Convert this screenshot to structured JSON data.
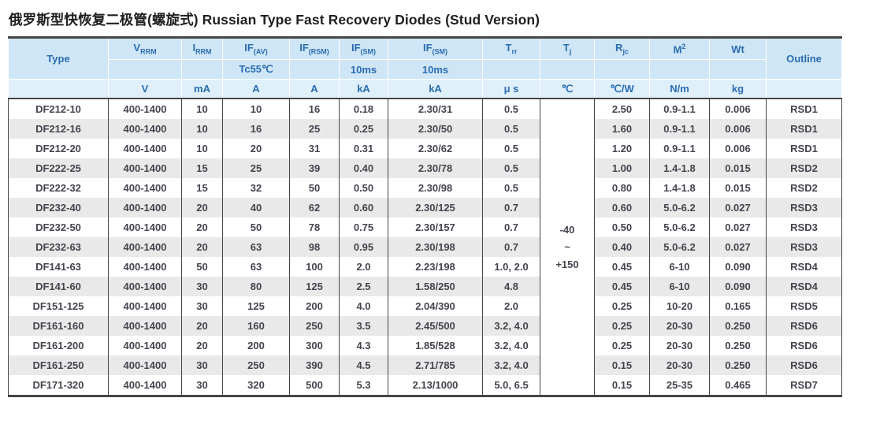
{
  "page_title": "俄罗斯型快恢复二极管(螺旋式) Russian Type Fast Recovery Diodes (Stud Version)",
  "colors": {
    "header_bg": "#cfe6f6",
    "units_row_bg": "#dff0fb",
    "header_text": "#2a6cb0",
    "body_text": "#44444e",
    "zebra_row": "#e9e9e9",
    "border_dark": "#454545",
    "grid_white": "#ffffff"
  },
  "table": {
    "columns": [
      {
        "id": "type",
        "label": {
          "base": "Type"
        },
        "row2": "",
        "unit": ""
      },
      {
        "id": "vrrm",
        "label": {
          "base": "V",
          "sub": "RRM"
        },
        "row2": "",
        "unit": "V"
      },
      {
        "id": "irrm",
        "label": {
          "base": "I",
          "sub": "RRM"
        },
        "row2": "",
        "unit": "mA"
      },
      {
        "id": "ifav",
        "label": {
          "base": "IF",
          "sub": "(AV)"
        },
        "row2": "Tc55℃",
        "unit": "A"
      },
      {
        "id": "ifrsm",
        "label": {
          "base": "IF",
          "sub": "(RSM)"
        },
        "row2": "",
        "unit": "A"
      },
      {
        "id": "ifsm1",
        "label": {
          "base": "IF",
          "sub": "(SM)"
        },
        "row2": "10ms",
        "unit": "kA"
      },
      {
        "id": "ifsm2",
        "label": {
          "base": "IF",
          "sub": "(SM)"
        },
        "row2": "10ms",
        "unit": "kA"
      },
      {
        "id": "trr",
        "label": {
          "base": "T",
          "sub": "rr"
        },
        "row2": "",
        "unit": "μ s"
      },
      {
        "id": "tj",
        "label": {
          "base": "T",
          "sub": "j"
        },
        "row2": "",
        "unit": "℃"
      },
      {
        "id": "rjc",
        "label": {
          "base": "R",
          "sub": "jc"
        },
        "row2": "",
        "unit": "℃/W"
      },
      {
        "id": "m2",
        "label": {
          "base": "M",
          "sup": "2"
        },
        "row2": "",
        "unit": "N/m"
      },
      {
        "id": "wt",
        "label": {
          "base": "Wt"
        },
        "row2": "",
        "unit": "kg"
      },
      {
        "id": "outline",
        "label": {
          "base": "Outline"
        },
        "row2": "",
        "unit": ""
      }
    ],
    "tj_range": [
      "-40",
      "~",
      "+150"
    ],
    "rows": [
      [
        "DF212-10",
        "400-1400",
        "10",
        "10",
        "16",
        "0.18",
        "2.30/31",
        "0.5",
        "2.50",
        "0.9-1.1",
        "0.006",
        "RSD1"
      ],
      [
        "DF212-16",
        "400-1400",
        "10",
        "16",
        "25",
        "0.25",
        "2.30/50",
        "0.5",
        "1.60",
        "0.9-1.1",
        "0.006",
        "RSD1"
      ],
      [
        "DF212-20",
        "400-1400",
        "10",
        "20",
        "31",
        "0.31",
        "2.30/62",
        "0.5",
        "1.20",
        "0.9-1.1",
        "0.006",
        "RSD1"
      ],
      [
        "DF222-25",
        "400-1400",
        "15",
        "25",
        "39",
        "0.40",
        "2.30/78",
        "0.5",
        "1.00",
        "1.4-1.8",
        "0.015",
        "RSD2"
      ],
      [
        "DF222-32",
        "400-1400",
        "15",
        "32",
        "50",
        "0.50",
        "2.30/98",
        "0.5",
        "0.80",
        "1.4-1.8",
        "0.015",
        "RSD2"
      ],
      [
        "DF232-40",
        "400-1400",
        "20",
        "40",
        "62",
        "0.60",
        "2.30/125",
        "0.7",
        "0.60",
        "5.0-6.2",
        "0.027",
        "RSD3"
      ],
      [
        "DF232-50",
        "400-1400",
        "20",
        "50",
        "78",
        "0.75",
        "2.30/157",
        "0.7",
        "0.50",
        "5.0-6.2",
        "0.027",
        "RSD3"
      ],
      [
        "DF232-63",
        "400-1400",
        "20",
        "63",
        "98",
        "0.95",
        "2.30/198",
        "0.7",
        "0.40",
        "5.0-6.2",
        "0.027",
        "RSD3"
      ],
      [
        "DF141-63",
        "400-1400",
        "50",
        "63",
        "100",
        "2.0",
        "2.23/198",
        "1.0, 2.0",
        "0.45",
        "6-10",
        "0.090",
        "RSD4"
      ],
      [
        "DF141-60",
        "400-1400",
        "30",
        "80",
        "125",
        "2.5",
        "1.58/250",
        "4.8",
        "0.45",
        "6-10",
        "0.090",
        "RSD4"
      ],
      [
        "DF151-125",
        "400-1400",
        "30",
        "125",
        "200",
        "4.0",
        "2.04/390",
        "2.0",
        "0.25",
        "10-20",
        "0.165",
        "RSD5"
      ],
      [
        "DF161-160",
        "400-1400",
        "20",
        "160",
        "250",
        "3.5",
        "2.45/500",
        "3.2, 4.0",
        "0.25",
        "20-30",
        "0.250",
        "RSD6"
      ],
      [
        "DF161-200",
        "400-1400",
        "20",
        "200",
        "300",
        "4.3",
        "1.85/528",
        "3.2, 4.0",
        "0.25",
        "20-30",
        "0.250",
        "RSD6"
      ],
      [
        "DF161-250",
        "400-1400",
        "30",
        "250",
        "390",
        "4.5",
        "2.71/785",
        "3.2, 4.0",
        "0.15",
        "20-30",
        "0.250",
        "RSD6"
      ],
      [
        "DF171-320",
        "400-1400",
        "30",
        "320",
        "500",
        "5.3",
        "2.13/1000",
        "5.0, 6.5",
        "0.15",
        "25-35",
        "0.465",
        "RSD7"
      ]
    ]
  }
}
